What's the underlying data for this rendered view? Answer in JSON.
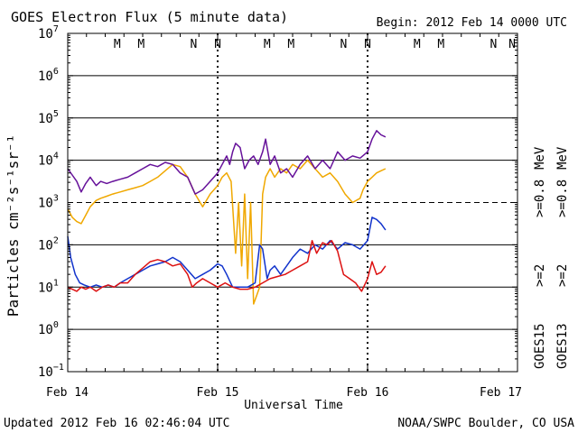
{
  "chart_data": {
    "type": "line",
    "title": "GOES Electron Flux (5 minute data)",
    "begin_label": "Begin: 2012 Feb 14 0000 UTC",
    "xlabel": "Universal Time",
    "ylabel": "Particles cm⁻²s⁻¹sr⁻¹",
    "x_unit": "days since 2012 Feb 14 0000 UTC",
    "xlim": [
      0,
      3
    ],
    "ylim_log10": [
      -1,
      7
    ],
    "x_ticks": [
      {
        "x": 0,
        "label": "Feb 14"
      },
      {
        "x": 1,
        "label": "Feb 15"
      },
      {
        "x": 2,
        "label": "Feb 16"
      },
      {
        "x": 3,
        "label": "Feb 17"
      }
    ],
    "y_ticks": [
      {
        "exp": 7,
        "label": "10",
        "sup": "7"
      },
      {
        "exp": 6,
        "label": "10",
        "sup": "6"
      },
      {
        "exp": 5,
        "label": "10",
        "sup": "5"
      },
      {
        "exp": 4,
        "label": "10",
        "sup": "4"
      },
      {
        "exp": 3,
        "label": "10",
        "sup": "3"
      },
      {
        "exp": 2,
        "label": "10",
        "sup": "2"
      },
      {
        "exp": 1,
        "label": "10",
        "sup": "1"
      },
      {
        "exp": 0,
        "label": "10",
        "sup": "0"
      },
      {
        "exp": -1,
        "label": "10",
        "sup": "−1"
      }
    ],
    "threshold_log10": 3,
    "markers": [
      {
        "x": 0.33,
        "label": "M",
        "color": "#cc2222"
      },
      {
        "x": 0.49,
        "label": "M",
        "color": "#2244aa"
      },
      {
        "x": 0.84,
        "label": "N",
        "color": "#cc2222"
      },
      {
        "x": 1.0,
        "label": "N",
        "color": "#2244aa"
      },
      {
        "x": 1.33,
        "label": "M",
        "color": "#cc2222"
      },
      {
        "x": 1.49,
        "label": "M",
        "color": "#2244aa"
      },
      {
        "x": 1.84,
        "label": "N",
        "color": "#cc2222"
      },
      {
        "x": 2.0,
        "label": "N",
        "color": "#2244aa"
      },
      {
        "x": 2.33,
        "label": "M",
        "color": "#cc2222"
      },
      {
        "x": 2.49,
        "label": "M",
        "color": "#2244aa"
      },
      {
        "x": 2.84,
        "label": "N",
        "color": "#cc2222"
      },
      {
        "x": 3.0,
        "label": "N",
        "color": "#2244aa"
      }
    ],
    "legend_position": "right",
    "series": [
      {
        "name": "GOES13 >=0.8 MeV",
        "satellite": "GOES13",
        "energy": ">=0.8 MeV",
        "color": "#f0a800",
        "log10_points": [
          [
            0.0,
            2.85
          ],
          [
            0.03,
            2.65
          ],
          [
            0.06,
            2.55
          ],
          [
            0.09,
            2.5
          ],
          [
            0.12,
            2.7
          ],
          [
            0.15,
            2.9
          ],
          [
            0.19,
            3.05
          ],
          [
            0.22,
            3.1
          ],
          [
            0.26,
            3.15
          ],
          [
            0.3,
            3.2
          ],
          [
            0.35,
            3.25
          ],
          [
            0.4,
            3.3
          ],
          [
            0.45,
            3.35
          ],
          [
            0.5,
            3.4
          ],
          [
            0.55,
            3.5
          ],
          [
            0.6,
            3.6
          ],
          [
            0.65,
            3.75
          ],
          [
            0.7,
            3.9
          ],
          [
            0.75,
            3.85
          ],
          [
            0.8,
            3.6
          ],
          [
            0.85,
            3.2
          ],
          [
            0.9,
            2.9
          ],
          [
            0.95,
            3.2
          ],
          [
            1.0,
            3.4
          ],
          [
            1.03,
            3.6
          ],
          [
            1.06,
            3.7
          ],
          [
            1.09,
            3.5
          ],
          [
            1.12,
            1.8
          ],
          [
            1.14,
            3.0
          ],
          [
            1.16,
            1.5
          ],
          [
            1.18,
            3.2
          ],
          [
            1.2,
            1.2
          ],
          [
            1.22,
            3.0
          ],
          [
            1.24,
            0.6
          ],
          [
            1.26,
            0.8
          ],
          [
            1.28,
            1.0
          ],
          [
            1.3,
            3.2
          ],
          [
            1.32,
            3.6
          ],
          [
            1.35,
            3.8
          ],
          [
            1.38,
            3.6
          ],
          [
            1.42,
            3.8
          ],
          [
            1.46,
            3.7
          ],
          [
            1.5,
            3.9
          ],
          [
            1.55,
            3.8
          ],
          [
            1.6,
            4.0
          ],
          [
            1.65,
            3.8
          ],
          [
            1.7,
            3.6
          ],
          [
            1.75,
            3.7
          ],
          [
            1.8,
            3.5
          ],
          [
            1.85,
            3.2
          ],
          [
            1.9,
            3.0
          ],
          [
            1.95,
            3.1
          ],
          [
            1.97,
            3.3
          ],
          [
            2.0,
            3.5
          ],
          [
            2.03,
            3.6
          ],
          [
            2.06,
            3.7
          ],
          [
            2.09,
            3.75
          ],
          [
            2.12,
            3.8
          ]
        ]
      },
      {
        "name": "GOES15 >=0.8 MeV",
        "satellite": "GOES15",
        "energy": ">=0.8 MeV",
        "color": "#66119a",
        "log10_points": [
          [
            0.0,
            3.8
          ],
          [
            0.03,
            3.65
          ],
          [
            0.06,
            3.5
          ],
          [
            0.09,
            3.25
          ],
          [
            0.12,
            3.45
          ],
          [
            0.15,
            3.6
          ],
          [
            0.19,
            3.4
          ],
          [
            0.22,
            3.5
          ],
          [
            0.26,
            3.45
          ],
          [
            0.3,
            3.5
          ],
          [
            0.35,
            3.55
          ],
          [
            0.4,
            3.6
          ],
          [
            0.45,
            3.7
          ],
          [
            0.5,
            3.8
          ],
          [
            0.55,
            3.9
          ],
          [
            0.6,
            3.85
          ],
          [
            0.65,
            3.95
          ],
          [
            0.7,
            3.9
          ],
          [
            0.75,
            3.7
          ],
          [
            0.8,
            3.6
          ],
          [
            0.85,
            3.2
          ],
          [
            0.9,
            3.3
          ],
          [
            0.95,
            3.5
          ],
          [
            1.0,
            3.7
          ],
          [
            1.03,
            3.9
          ],
          [
            1.06,
            4.1
          ],
          [
            1.08,
            3.9
          ],
          [
            1.1,
            4.2
          ],
          [
            1.12,
            4.4
          ],
          [
            1.15,
            4.3
          ],
          [
            1.18,
            3.8
          ],
          [
            1.21,
            4.0
          ],
          [
            1.24,
            4.1
          ],
          [
            1.27,
            3.9
          ],
          [
            1.3,
            4.2
          ],
          [
            1.32,
            4.5
          ],
          [
            1.35,
            3.9
          ],
          [
            1.38,
            4.1
          ],
          [
            1.42,
            3.7
          ],
          [
            1.46,
            3.8
          ],
          [
            1.5,
            3.6
          ],
          [
            1.55,
            3.9
          ],
          [
            1.6,
            4.1
          ],
          [
            1.65,
            3.8
          ],
          [
            1.7,
            4.0
          ],
          [
            1.75,
            3.8
          ],
          [
            1.8,
            4.2
          ],
          [
            1.85,
            4.0
          ],
          [
            1.9,
            4.1
          ],
          [
            1.95,
            4.05
          ],
          [
            2.0,
            4.2
          ],
          [
            2.03,
            4.5
          ],
          [
            2.06,
            4.7
          ],
          [
            2.09,
            4.6
          ],
          [
            2.12,
            4.55
          ]
        ]
      },
      {
        "name": "GOES15 >=2 MeV",
        "satellite": "GOES15",
        "energy": ">=2 MeV",
        "color": "#1133cc",
        "log10_points": [
          [
            0.0,
            2.2
          ],
          [
            0.02,
            1.7
          ],
          [
            0.05,
            1.3
          ],
          [
            0.08,
            1.1
          ],
          [
            0.11,
            1.05
          ],
          [
            0.15,
            1.0
          ],
          [
            0.19,
            1.05
          ],
          [
            0.23,
            1.0
          ],
          [
            0.27,
            1.05
          ],
          [
            0.31,
            1.0
          ],
          [
            0.35,
            1.1
          ],
          [
            0.4,
            1.2
          ],
          [
            0.45,
            1.3
          ],
          [
            0.5,
            1.4
          ],
          [
            0.55,
            1.5
          ],
          [
            0.6,
            1.55
          ],
          [
            0.65,
            1.6
          ],
          [
            0.7,
            1.7
          ],
          [
            0.75,
            1.6
          ],
          [
            0.8,
            1.4
          ],
          [
            0.85,
            1.2
          ],
          [
            0.9,
            1.3
          ],
          [
            0.95,
            1.4
          ],
          [
            1.0,
            1.55
          ],
          [
            1.03,
            1.5
          ],
          [
            1.06,
            1.3
          ],
          [
            1.1,
            1.0
          ],
          [
            1.15,
            1.0
          ],
          [
            1.2,
            1.0
          ],
          [
            1.25,
            1.1
          ],
          [
            1.28,
            2.0
          ],
          [
            1.3,
            1.9
          ],
          [
            1.33,
            1.2
          ],
          [
            1.35,
            1.4
          ],
          [
            1.38,
            1.5
          ],
          [
            1.42,
            1.3
          ],
          [
            1.46,
            1.5
          ],
          [
            1.5,
            1.7
          ],
          [
            1.55,
            1.9
          ],
          [
            1.6,
            1.8
          ],
          [
            1.65,
            2.0
          ],
          [
            1.7,
            1.9
          ],
          [
            1.75,
            2.1
          ],
          [
            1.8,
            1.9
          ],
          [
            1.85,
            2.05
          ],
          [
            1.9,
            2.0
          ],
          [
            1.95,
            1.9
          ],
          [
            2.0,
            2.1
          ],
          [
            2.03,
            2.65
          ],
          [
            2.06,
            2.6
          ],
          [
            2.09,
            2.5
          ],
          [
            2.12,
            2.35
          ]
        ]
      },
      {
        "name": "GOES13 >=2 MeV",
        "satellite": "GOES13",
        "energy": ">=2 MeV",
        "color": "#dd1111",
        "log10_points": [
          [
            0.0,
            1.0
          ],
          [
            0.03,
            0.95
          ],
          [
            0.06,
            0.9
          ],
          [
            0.09,
            1.0
          ],
          [
            0.12,
            0.95
          ],
          [
            0.15,
            1.0
          ],
          [
            0.19,
            0.9
          ],
          [
            0.23,
            1.0
          ],
          [
            0.27,
            1.05
          ],
          [
            0.31,
            1.0
          ],
          [
            0.35,
            1.1
          ],
          [
            0.4,
            1.1
          ],
          [
            0.45,
            1.3
          ],
          [
            0.5,
            1.45
          ],
          [
            0.55,
            1.6
          ],
          [
            0.6,
            1.65
          ],
          [
            0.65,
            1.6
          ],
          [
            0.7,
            1.5
          ],
          [
            0.75,
            1.55
          ],
          [
            0.8,
            1.3
          ],
          [
            0.83,
            1.0
          ],
          [
            0.86,
            1.1
          ],
          [
            0.9,
            1.2
          ],
          [
            0.95,
            1.1
          ],
          [
            1.0,
            1.0
          ],
          [
            1.05,
            1.1
          ],
          [
            1.1,
            1.0
          ],
          [
            1.15,
            0.95
          ],
          [
            1.2,
            0.95
          ],
          [
            1.25,
            1.0
          ],
          [
            1.3,
            1.1
          ],
          [
            1.35,
            1.2
          ],
          [
            1.4,
            1.25
          ],
          [
            1.45,
            1.3
          ],
          [
            1.5,
            1.4
          ],
          [
            1.55,
            1.5
          ],
          [
            1.6,
            1.6
          ],
          [
            1.63,
            2.1
          ],
          [
            1.66,
            1.8
          ],
          [
            1.7,
            2.05
          ],
          [
            1.73,
            2.0
          ],
          [
            1.76,
            2.1
          ],
          [
            1.8,
            1.85
          ],
          [
            1.84,
            1.3
          ],
          [
            1.88,
            1.2
          ],
          [
            1.92,
            1.1
          ],
          [
            1.96,
            0.9
          ],
          [
            2.0,
            1.2
          ],
          [
            2.03,
            1.6
          ],
          [
            2.06,
            1.3
          ],
          [
            2.09,
            1.35
          ],
          [
            2.12,
            1.5
          ]
        ]
      }
    ],
    "legend": {
      "goes15": "GOES15",
      "goes13": "GOES13",
      "label_2mev": ">=2",
      "label_08mev": ">=0.8",
      "unit": "MeV",
      "colors": {
        "goes15_2mev": "#1133cc",
        "goes15_08mev": "#66119a",
        "goes13_2mev": "#dd1111",
        "goes13_08mev": "#f0a800"
      }
    }
  },
  "footer": {
    "updated": "Updated 2012 Feb 16 02:46:04 UTC",
    "source": "NOAA/SWPC Boulder, CO USA"
  }
}
